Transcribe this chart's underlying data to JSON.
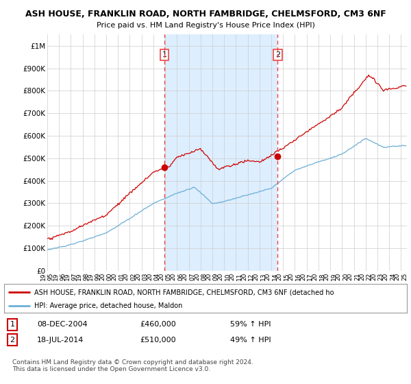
{
  "title_line1": "ASH HOUSE, FRANKLIN ROAD, NORTH FAMBRIDGE, CHELMSFORD, CM3 6NF",
  "title_line2": "Price paid vs. HM Land Registry's House Price Index (HPI)",
  "ylim": [
    0,
    1050000
  ],
  "xlim_start": 1995.0,
  "xlim_end": 2025.5,
  "yticks": [
    0,
    100000,
    200000,
    300000,
    400000,
    500000,
    600000,
    700000,
    800000,
    900000,
    1000000
  ],
  "ytick_labels": [
    "£0",
    "£100K",
    "£200K",
    "£300K",
    "£400K",
    "£500K",
    "£600K",
    "£700K",
    "£800K",
    "£900K",
    "£1M"
  ],
  "xticks": [
    1995,
    1996,
    1997,
    1998,
    1999,
    2000,
    2001,
    2002,
    2003,
    2004,
    2005,
    2006,
    2007,
    2008,
    2009,
    2010,
    2011,
    2012,
    2013,
    2014,
    2015,
    2016,
    2017,
    2018,
    2019,
    2020,
    2021,
    2022,
    2023,
    2024,
    2025
  ],
  "hpi_color": "#6baed6",
  "price_color": "#cc0000",
  "vline_color": "#ee4444",
  "shade_color": "#ddeeff",
  "purchase1_x": 2004.93,
  "purchase1_y": 460000,
  "purchase1_label": "1",
  "purchase2_x": 2014.54,
  "purchase2_y": 510000,
  "purchase2_label": "2",
  "legend_line1": "ASH HOUSE, FRANKLIN ROAD, NORTH FAMBRIDGE, CHELMSFORD, CM3 6NF (detached ho",
  "legend_line2": "HPI: Average price, detached house, Maldon",
  "table_row1": [
    "1",
    "08-DEC-2004",
    "£460,000",
    "59% ↑ HPI"
  ],
  "table_row2": [
    "2",
    "18-JUL-2014",
    "£510,000",
    "49% ↑ HPI"
  ],
  "footer": "Contains HM Land Registry data © Crown copyright and database right 2024.\nThis data is licensed under the Open Government Licence v3.0.",
  "plot_bg": "#ffffff",
  "grid_color": "#cccccc"
}
